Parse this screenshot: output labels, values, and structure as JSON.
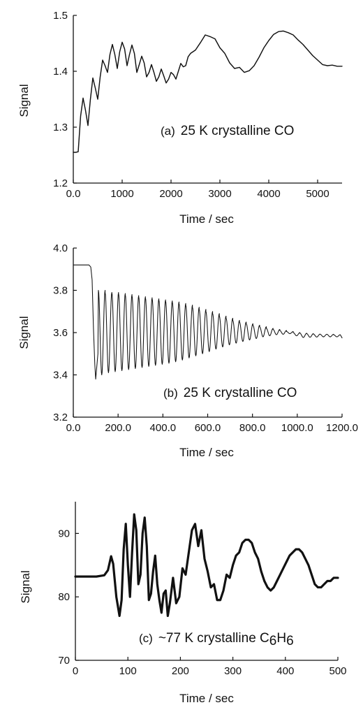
{
  "figure": {
    "panels": [
      {
        "label": "(a)",
        "annotation": "25 K crystalline CO",
        "annotation_sub": null,
        "xlabel": "Time / sec",
        "ylabel": "Signal"
      },
      {
        "label": "(b)",
        "annotation": "25 K crystalline CO",
        "annotation_sub": null,
        "xlabel": "Time / sec",
        "ylabel": "Signal"
      },
      {
        "label": "(c)",
        "annotation": "~77 K crystalline C",
        "annotation_sub": "C6H6",
        "xlabel": "Time / sec",
        "ylabel": "Signal"
      }
    ]
  },
  "chart_data": [
    {
      "type": "line",
      "title": "",
      "annotation": "(a) 25 K crystalline CO",
      "xlabel": "Time / sec",
      "ylabel": "Signal",
      "xlim": [
        0,
        5500
      ],
      "ylim": [
        1.2,
        1.5
      ],
      "xticks": [
        0,
        1000,
        2000,
        3000,
        4000,
        5000
      ],
      "yticks": [
        1.2,
        1.3,
        1.4,
        1.5
      ],
      "grid": false,
      "color": "#111111",
      "series": [
        {
          "x": [
            0,
            50,
            100,
            150,
            200,
            250,
            300,
            350,
            400,
            450,
            500,
            550,
            600,
            650,
            700,
            750,
            800,
            850,
            900,
            950,
            1000,
            1050,
            1100,
            1150,
            1200,
            1250,
            1300,
            1350,
            1400,
            1450,
            1500,
            1550,
            1600,
            1650,
            1700,
            1750,
            1800,
            1850,
            1900,
            1950,
            2000,
            2050,
            2100,
            2150,
            2200,
            2250,
            2300,
            2350,
            2400,
            2500,
            2600,
            2700,
            2800,
            2900,
            3000,
            3100,
            3200,
            3300,
            3400,
            3500,
            3600,
            3700,
            3800,
            3900,
            4000,
            4100,
            4200,
            4300,
            4400,
            4500,
            4600,
            4700,
            4800,
            4900,
            5000,
            5100,
            5200,
            5300,
            5400,
            5500
          ],
          "y": [
            1.255,
            1.255,
            1.256,
            1.32,
            1.352,
            1.33,
            1.303,
            1.35,
            1.388,
            1.37,
            1.35,
            1.39,
            1.42,
            1.41,
            1.398,
            1.43,
            1.448,
            1.43,
            1.405,
            1.435,
            1.452,
            1.44,
            1.41,
            1.43,
            1.447,
            1.432,
            1.398,
            1.412,
            1.427,
            1.415,
            1.39,
            1.398,
            1.412,
            1.398,
            1.382,
            1.39,
            1.404,
            1.392,
            1.379,
            1.386,
            1.398,
            1.394,
            1.386,
            1.4,
            1.414,
            1.408,
            1.41,
            1.426,
            1.432,
            1.438,
            1.451,
            1.465,
            1.462,
            1.458,
            1.442,
            1.432,
            1.415,
            1.405,
            1.407,
            1.398,
            1.401,
            1.41,
            1.425,
            1.442,
            1.455,
            1.466,
            1.471,
            1.472,
            1.469,
            1.465,
            1.456,
            1.448,
            1.438,
            1.428,
            1.42,
            1.412,
            1.41,
            1.411,
            1.409,
            1.409
          ]
        }
      ]
    },
    {
      "type": "line",
      "title": "",
      "annotation": "(b) 25 K crystalline CO",
      "xlabel": "Time / sec",
      "ylabel": "Signal",
      "xlim": [
        0,
        1200
      ],
      "ylim": [
        3.2,
        4.0
      ],
      "xticks": [
        0,
        200,
        400,
        600,
        800,
        1000,
        1200
      ],
      "yticks": [
        3.2,
        3.4,
        3.6,
        3.8,
        4.0
      ],
      "grid": false,
      "color": "#111111",
      "series": [
        {
          "x": [
            0,
            40,
            70,
            78,
            84,
            90,
            96,
            100,
            110,
            127,
            157,
            187,
            217,
            247,
            277,
            307,
            337,
            367,
            397,
            427,
            457,
            487,
            517,
            547,
            577,
            607,
            637,
            667,
            697,
            727,
            757,
            787,
            817,
            847,
            877,
            907,
            937,
            967,
            997,
            1027,
            1057,
            1087,
            1117,
            1147,
            1177,
            1200
          ],
          "y": [
            3.92,
            3.92,
            3.92,
            3.91,
            3.85,
            3.62,
            3.45,
            3.38,
            3.5,
            3.8,
            3.79,
            3.79,
            3.785,
            3.78,
            3.775,
            3.77,
            3.765,
            3.76,
            3.755,
            3.75,
            3.745,
            3.738,
            3.73,
            3.72,
            3.71,
            3.7,
            3.69,
            3.678,
            3.668,
            3.658,
            3.65,
            3.642,
            3.635,
            3.628,
            3.62,
            3.615,
            3.61,
            3.605,
            3.6,
            3.597,
            3.595,
            3.593,
            3.592,
            3.592,
            3.59,
            3.575
          ],
          "oscillation_center": [
            3.6,
            3.6,
            3.6,
            3.6,
            3.6,
            3.6,
            3.6,
            3.6,
            3.6,
            3.6,
            3.6,
            3.6,
            3.6,
            3.6,
            3.6,
            3.6,
            3.6,
            3.6,
            3.6,
            3.6,
            3.6,
            3.6,
            3.6,
            3.6,
            3.6,
            3.6,
            3.6,
            3.6,
            3.6,
            3.6,
            3.6,
            3.6,
            3.6,
            3.6,
            3.6,
            3.6,
            3.6,
            3.6,
            3.6,
            3.6,
            3.6,
            3.6,
            3.6,
            3.6,
            3.6,
            3.6
          ],
          "oscillation_period": 30,
          "maxima_x": [
            127,
            157,
            187,
            217,
            247,
            277,
            307,
            337,
            367,
            397,
            427,
            457,
            487,
            517,
            547,
            577,
            607,
            637,
            667,
            697,
            727,
            757,
            787,
            817,
            847,
            877,
            907,
            937,
            967,
            997,
            1027,
            1057,
            1087,
            1117,
            1147,
            1177
          ],
          "maxima_y": [
            3.8,
            3.79,
            3.79,
            3.785,
            3.78,
            3.775,
            3.77,
            3.765,
            3.76,
            3.755,
            3.75,
            3.745,
            3.738,
            3.73,
            3.72,
            3.71,
            3.7,
            3.69,
            3.678,
            3.668,
            3.658,
            3.65,
            3.642,
            3.635,
            3.628,
            3.62,
            3.615,
            3.61,
            3.605,
            3.6,
            3.597,
            3.595,
            3.593,
            3.592,
            3.592,
            3.59
          ],
          "minima_y": [
            3.4,
            3.41,
            3.415,
            3.42,
            3.425,
            3.43,
            3.435,
            3.44,
            3.445,
            3.45,
            3.455,
            3.462,
            3.47,
            3.48,
            3.49,
            3.5,
            3.51,
            3.522,
            3.532,
            3.542,
            3.55,
            3.558,
            3.565,
            3.572,
            3.58,
            3.585,
            3.59,
            3.592,
            3.595,
            3.585,
            3.577,
            3.578,
            3.579,
            3.58,
            3.58,
            3.58
          ]
        }
      ]
    },
    {
      "type": "line",
      "title": "",
      "annotation": "(c) ~77 K crystalline C6H6",
      "xlabel": "Time / sec",
      "ylabel": "Signal",
      "xlim": [
        0,
        500
      ],
      "ylim": [
        70,
        95
      ],
      "xticks": [
        0,
        100,
        200,
        300,
        400,
        500
      ],
      "yticks": [
        70,
        80,
        90
      ],
      "grid": false,
      "color": "#111111",
      "series": [
        {
          "x": [
            0,
            20,
            40,
            55,
            62,
            68,
            72,
            78,
            84,
            88,
            92,
            96,
            100,
            104,
            108,
            112,
            116,
            120,
            124,
            128,
            132,
            136,
            140,
            144,
            148,
            152,
            156,
            160,
            164,
            168,
            172,
            176,
            180,
            186,
            192,
            198,
            204,
            210,
            216,
            222,
            228,
            234,
            240,
            246,
            252,
            258,
            264,
            270,
            276,
            282,
            288,
            294,
            300,
            306,
            312,
            318,
            324,
            330,
            336,
            342,
            348,
            354,
            360,
            366,
            372,
            378,
            384,
            390,
            396,
            402,
            408,
            414,
            420,
            426,
            432,
            438,
            444,
            450,
            456,
            462,
            468,
            474,
            480,
            486,
            492,
            500
          ],
          "y": [
            83.2,
            83.2,
            83.2,
            83.4,
            84.2,
            86.4,
            85.2,
            80.0,
            77.0,
            79.5,
            87.5,
            91.5,
            85.0,
            80.0,
            87.0,
            93.0,
            90.5,
            82.0,
            83.5,
            90.0,
            92.5,
            88.0,
            79.5,
            80.5,
            84.0,
            86.5,
            82.0,
            79.5,
            77.5,
            80.5,
            81.0,
            77.0,
            79.0,
            83.0,
            79.0,
            80.0,
            84.5,
            83.5,
            87.0,
            90.5,
            91.5,
            88.0,
            90.5,
            86.0,
            84.0,
            81.5,
            82.0,
            79.5,
            79.5,
            81.0,
            83.5,
            83.0,
            85.0,
            86.5,
            87.0,
            88.5,
            89.0,
            89.0,
            88.5,
            87.0,
            86.0,
            84.0,
            82.5,
            81.5,
            81.0,
            81.5,
            82.5,
            83.5,
            84.5,
            85.5,
            86.5,
            87.0,
            87.5,
            87.5,
            87.0,
            86.0,
            85.0,
            83.5,
            82.0,
            81.5,
            81.5,
            82.0,
            82.5,
            82.5,
            83.0,
            83.0
          ]
        }
      ]
    }
  ]
}
